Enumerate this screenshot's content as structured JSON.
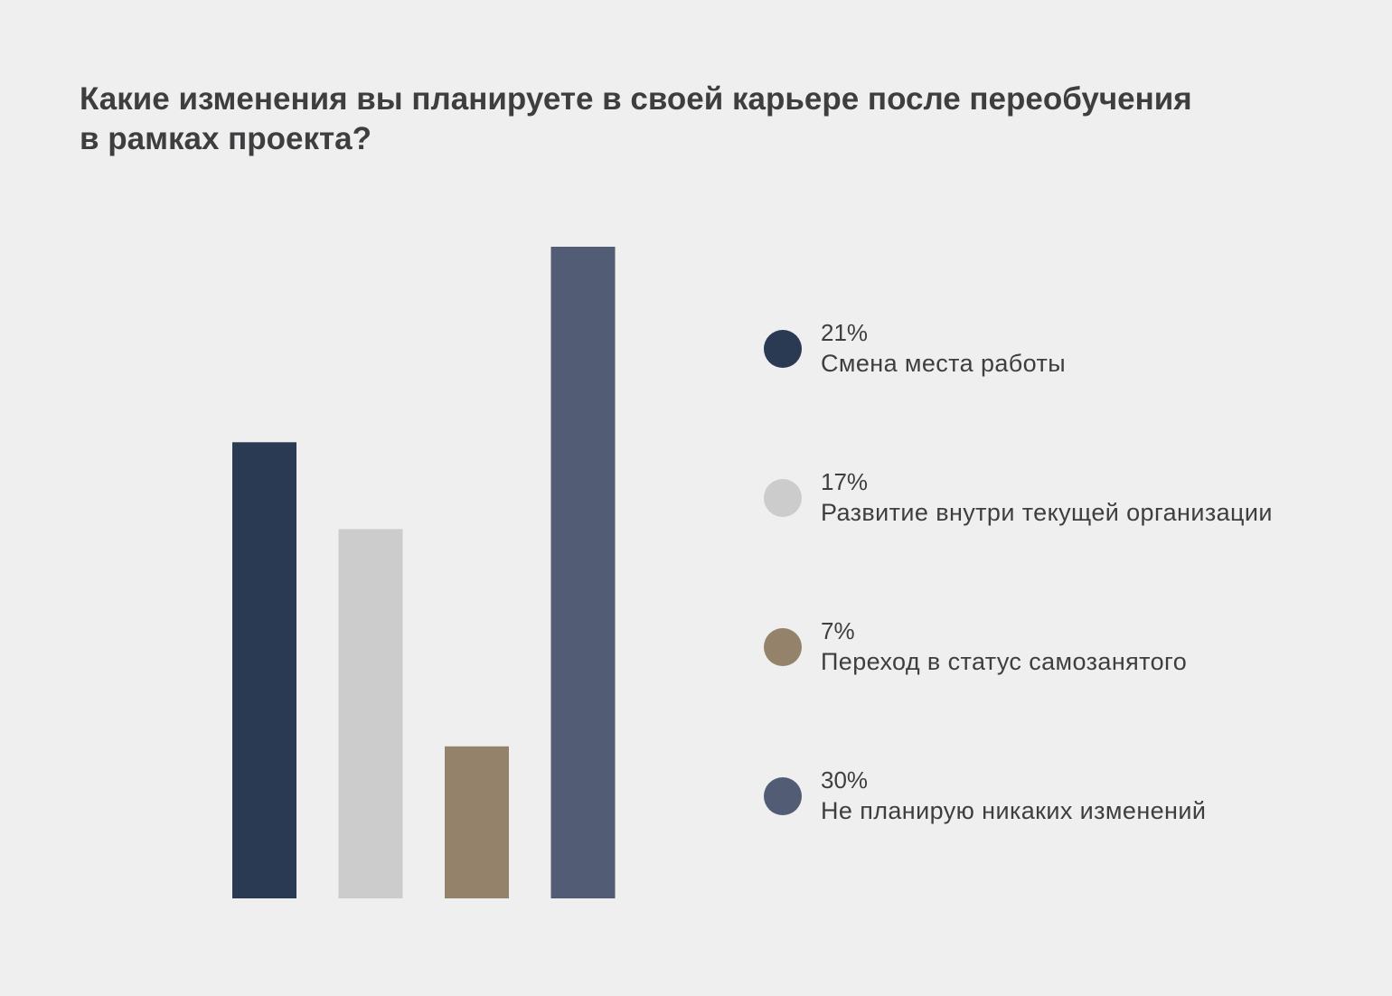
{
  "title": "Какие изменения вы планируете в своей карьере после переобучения\nв рамках проекта?",
  "chart_data": {
    "type": "bar",
    "categories": [
      "Смена места работы",
      "Развитие внутри текущей организации",
      "Переход в статус самозанятого",
      "Не планирую никаких изменений"
    ],
    "values": [
      21,
      17,
      7,
      30
    ],
    "value_labels": [
      "21%",
      "17%",
      "7%",
      "30%"
    ],
    "colors": [
      "#2a3a53",
      "#cccccc",
      "#95826a",
      "#525d75"
    ],
    "legend_position": "right",
    "grid": false,
    "axes_visible": false,
    "ylim": [
      0,
      30
    ]
  }
}
